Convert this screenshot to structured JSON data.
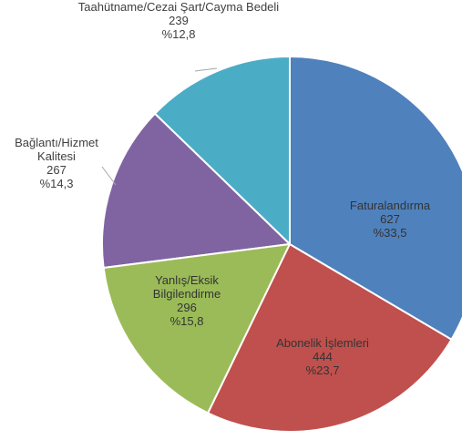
{
  "chart_data": {
    "type": "pie",
    "categories": [
      "Faturalandırma",
      "Abonelik İşlemleri",
      "Yanlış/Eksik Bilgilendirme",
      "Bağlantı/Hizmet Kalitesi",
      "Taahütname/Cezai Şart/Cayma Bedeli"
    ],
    "values": [
      627,
      444,
      296,
      267,
      239
    ],
    "percent_labels": [
      "%33,5",
      "%23,7",
      "%15,8",
      "%14,3",
      "%12,8"
    ],
    "colors": [
      "#4f81bd",
      "#c0504d",
      "#9bbb59",
      "#8064a2",
      "#4bacc6"
    ]
  }
}
